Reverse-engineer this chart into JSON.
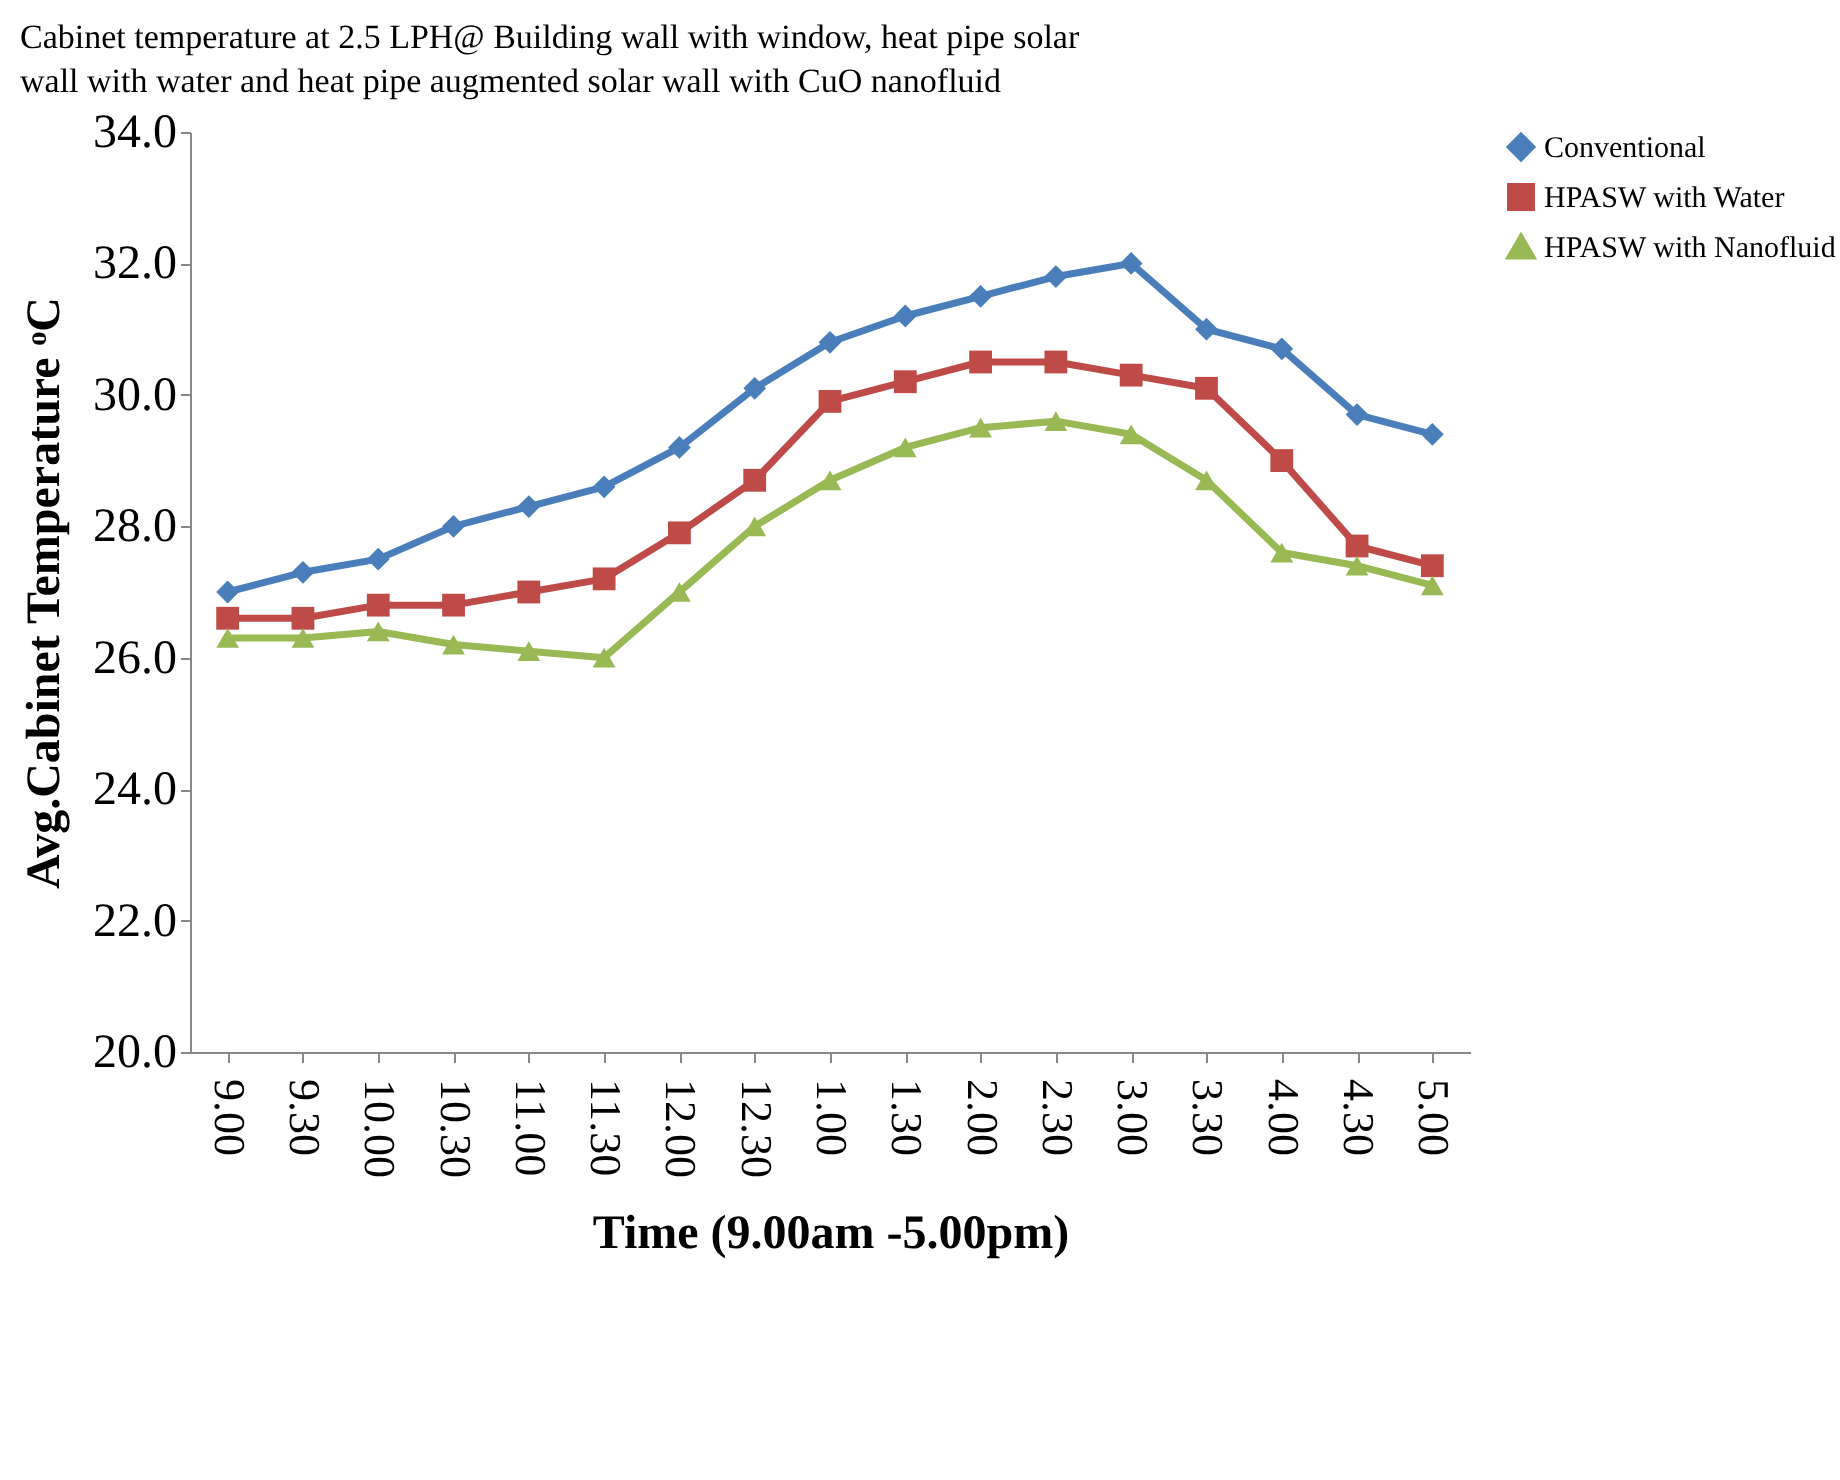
{
  "chart_data": {
    "type": "line",
    "title": "Cabinet temperature at 2.5 LPH@ Building wall with window, heat pipe solar wall with water and heat pipe augmented solar wall with CuO nanofluid",
    "xlabel": "Time (9.00am -5.00pm)",
    "ylabel": "Avg.Cabinet Temperature ᵒC",
    "categories": [
      "9.00",
      "9.30",
      "10.00",
      "10.30",
      "11.00",
      "11.30",
      "12.00",
      "12.30",
      "1.00",
      "1.30",
      "2.00",
      "2.30",
      "3.00",
      "3.30",
      "4.00",
      "4.30",
      "5.00"
    ],
    "series": [
      {
        "name": "Conventional",
        "color": "#4a7ebb",
        "marker": "diamond",
        "values": [
          27.0,
          27.3,
          27.5,
          28.0,
          28.3,
          28.6,
          29.2,
          30.1,
          30.8,
          31.2,
          31.5,
          31.8,
          32.0,
          31.0,
          30.7,
          29.7,
          29.4
        ]
      },
      {
        "name": "HPASW with Water",
        "color": "#be4b48",
        "marker": "square",
        "values": [
          26.6,
          26.6,
          26.8,
          26.8,
          27.0,
          27.2,
          27.9,
          28.7,
          29.9,
          30.2,
          30.5,
          30.5,
          30.3,
          30.1,
          29.0,
          27.7,
          27.4
        ]
      },
      {
        "name": "HPASW with Nanofluid",
        "color": "#98b954",
        "marker": "triangle",
        "values": [
          26.3,
          26.3,
          26.4,
          26.2,
          26.1,
          26.0,
          27.0,
          28.0,
          28.7,
          29.2,
          29.5,
          29.6,
          29.4,
          28.7,
          27.6,
          27.4,
          27.1
        ]
      }
    ],
    "ylim": [
      20,
      34
    ],
    "yticks": [
      {
        "value": 20,
        "label": "20.0"
      },
      {
        "value": 22,
        "label": "22.0"
      },
      {
        "value": 24,
        "label": "24.0"
      },
      {
        "value": 26,
        "label": "26.0"
      },
      {
        "value": 28,
        "label": "28.0"
      },
      {
        "value": 30,
        "label": "30.0"
      },
      {
        "value": 32,
        "label": "32.0"
      },
      {
        "value": 34,
        "label": "34.0"
      }
    ],
    "legend": "right",
    "grid": false,
    "line_style": "solid"
  }
}
